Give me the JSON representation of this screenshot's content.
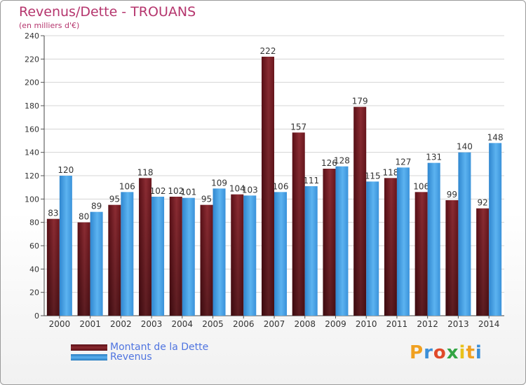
{
  "title": "Revenus/Dette - TROUANS",
  "subtitle": "(en milliers d'€)",
  "legend": {
    "debt_label": "Montant de la Dette",
    "revenue_label": "Revenus"
  },
  "logo": {
    "text": "Proxiti",
    "colors": [
      "#f0a020",
      "#3b8fd8",
      "#e04a2a",
      "#33a544",
      "#e8c21a"
    ]
  },
  "colors": {
    "debt": "#7a1a22",
    "revenue": "#3d9be0",
    "title": "#b5356d",
    "legend_text": "#4f74e0"
  },
  "chart_data": {
    "type": "bar",
    "title": "Revenus/Dette - TROUANS",
    "subtitle": "(en milliers d'€)",
    "categories": [
      "2000",
      "2001",
      "2002",
      "2003",
      "2004",
      "2005",
      "2006",
      "2007",
      "2008",
      "2009",
      "2010",
      "2011",
      "2012",
      "2013",
      "2014"
    ],
    "series": [
      {
        "name": "Montant de la Dette",
        "values": [
          83,
          80,
          95,
          118,
          102,
          95,
          104,
          222,
          157,
          126,
          179,
          118,
          106,
          99,
          92
        ]
      },
      {
        "name": "Revenus",
        "values": [
          120,
          89,
          106,
          102,
          101,
          109,
          103,
          106,
          111,
          128,
          115,
          127,
          131,
          140,
          148
        ]
      }
    ],
    "ylim": [
      0,
      240
    ],
    "yticks": [
      0,
      20,
      40,
      60,
      80,
      100,
      120,
      140,
      160,
      180,
      200,
      220,
      240
    ],
    "grid": true,
    "legend_position": "bottom-left"
  }
}
